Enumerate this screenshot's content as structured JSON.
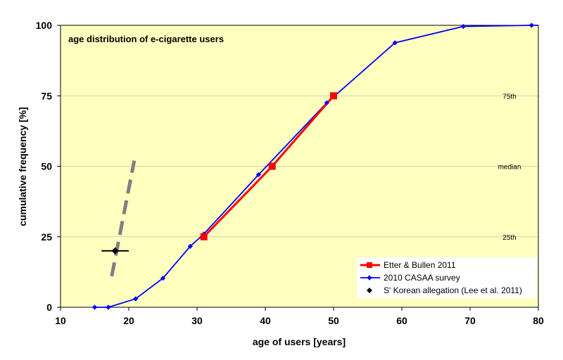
{
  "chart_data": {
    "type": "line",
    "title": "age distribution of e-cigarette users",
    "xlabel": "age of users [years]",
    "ylabel": "cumulative frequency [%]",
    "xlim": [
      10,
      80
    ],
    "ylim": [
      0,
      100
    ],
    "x_ticks": [
      "10",
      "20",
      "30",
      "40",
      "50",
      "60",
      "70",
      "80"
    ],
    "y_ticks": [
      "0",
      "25",
      "50",
      "75",
      "100"
    ],
    "grid": "horizontal",
    "legend_position": "bottom-right",
    "reference_lines": [
      {
        "y": 25,
        "label": "25th"
      },
      {
        "y": 50,
        "label": "median"
      },
      {
        "y": 75,
        "label": "75th"
      }
    ],
    "series": [
      {
        "name": "Etter & Bullen 2011",
        "color": "#ff0000",
        "marker": "square",
        "x": [
          31,
          41,
          50
        ],
        "y": [
          25,
          50,
          75
        ]
      },
      {
        "name": "2010 CASAA survey",
        "color": "#0000ff",
        "marker": "diamond",
        "x": [
          15,
          17,
          21,
          25,
          29,
          31,
          39,
          49,
          59,
          69,
          79,
          80
        ],
        "y": [
          0,
          0,
          3,
          10.3,
          21.6,
          26,
          47,
          72.5,
          93.8,
          99.6,
          100,
          100
        ]
      },
      {
        "name": "S' Korean allegation (Lee et al. 2011)",
        "color": "#000000",
        "marker": "diamond",
        "x": [
          18
        ],
        "y": [
          20
        ],
        "x_err": [
          16,
          20
        ],
        "range_line": {
          "color": "#808080",
          "x": [
            17.5,
            20.8
          ],
          "y": [
            11,
            52
          ]
        }
      }
    ]
  },
  "colors": {
    "plot_background": "#ffffc0",
    "gridline": "#c8c8a0"
  }
}
